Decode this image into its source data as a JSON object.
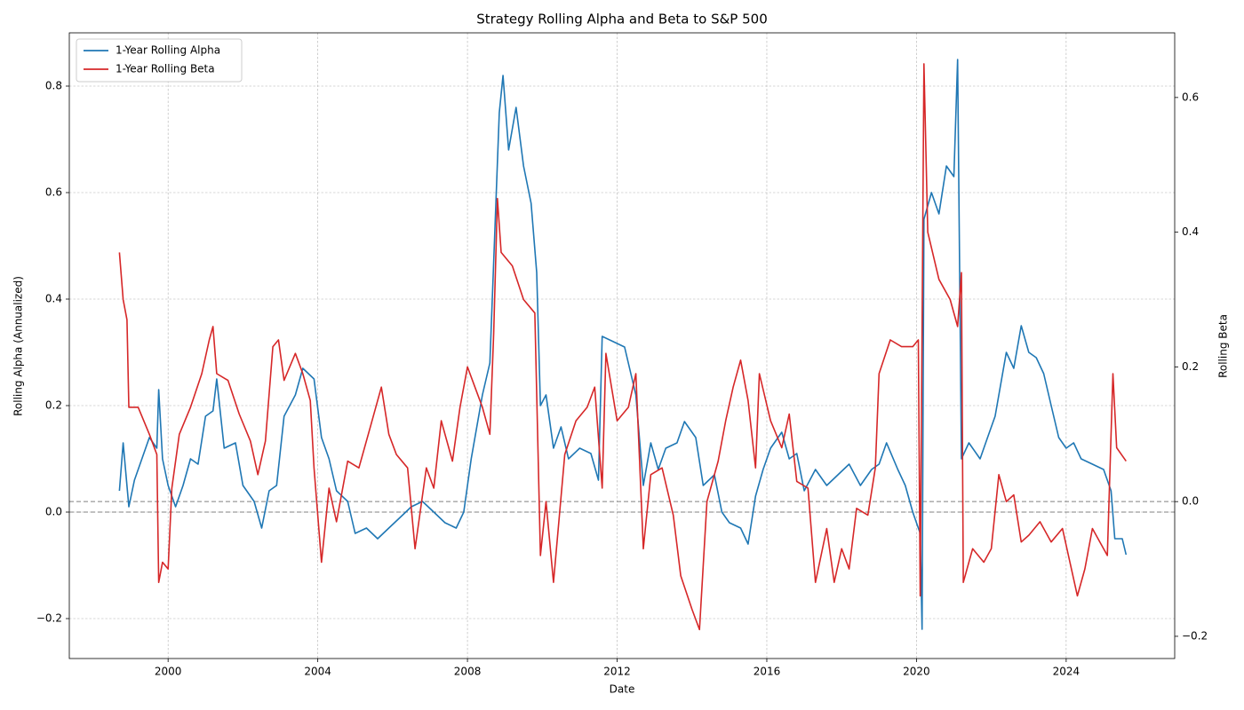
{
  "chart_data": {
    "type": "line",
    "title": "Strategy Rolling Alpha and Beta to S&P 500",
    "x_label": "Date",
    "y_label": "Rolling Alpha (Annualized)",
    "y2_label": "Rolling Beta",
    "xlim": [
      1997.36,
      2026.9
    ],
    "xticks": [
      2000,
      2004,
      2008,
      2012,
      2016,
      2020,
      2024
    ],
    "ylim": [
      -0.275,
      0.9
    ],
    "yticks": [
      {
        "value": -0.2,
        "label": "−0.2"
      },
      {
        "value": 0,
        "label": "0.0"
      },
      0.2,
      0.4,
      0.6,
      0.8
    ],
    "y2lim": [
      -0.233,
      0.696
    ],
    "y2ticks": [
      {
        "value": -0.2,
        "label": "−0.2"
      },
      {
        "value": 0,
        "label": "0.0"
      },
      0.2,
      0.4,
      0.6
    ],
    "grid": true,
    "legend": "upper-left",
    "reference_lines": [
      {
        "axis": "y",
        "value": 0,
        "color": "#808080"
      },
      {
        "axis": "y2",
        "value": 0,
        "color": "#808080"
      }
    ],
    "series": [
      {
        "name": "1-Year Rolling Alpha",
        "color": "#1f77b4",
        "axis": "y",
        "x": [
          1998.7,
          1998.8,
          1998.95,
          1999.1,
          1999.3,
          1999.5,
          1999.7,
          1999.75,
          1999.85,
          2000.0,
          2000.2,
          2000.4,
          2000.6,
          2000.8,
          2001.0,
          2001.2,
          2001.3,
          2001.5,
          2001.8,
          2002.0,
          2002.3,
          2002.5,
          2002.7,
          2002.9,
          2003.1,
          2003.4,
          2003.6,
          2003.9,
          2004.1,
          2004.3,
          2004.5,
          2004.8,
          2005.0,
          2005.3,
          2005.6,
          2005.9,
          2006.2,
          2006.5,
          2006.8,
          2007.1,
          2007.4,
          2007.7,
          2007.9,
          2008.1,
          2008.4,
          2008.6,
          2008.7,
          2008.85,
          2008.95,
          2009.1,
          2009.3,
          2009.5,
          2009.7,
          2009.85,
          2009.95,
          2010.1,
          2010.3,
          2010.5,
          2010.7,
          2011.0,
          2011.3,
          2011.5,
          2011.6,
          2011.9,
          2012.2,
          2012.5,
          2012.7,
          2012.9,
          2013.1,
          2013.3,
          2013.6,
          2013.8,
          2014.1,
          2014.3,
          2014.6,
          2014.8,
          2015.0,
          2015.3,
          2015.5,
          2015.7,
          2015.9,
          2016.1,
          2016.4,
          2016.6,
          2016.8,
          2017.0,
          2017.3,
          2017.6,
          2017.9,
          2018.2,
          2018.5,
          2018.8,
          2019.0,
          2019.2,
          2019.5,
          2019.7,
          2019.9,
          2020.1,
          2020.15,
          2020.2,
          2020.4,
          2020.6,
          2020.8,
          2021.0,
          2021.1,
          2021.2,
          2021.4,
          2021.7,
          2021.9,
          2022.1,
          2022.4,
          2022.6,
          2022.8,
          2023.0,
          2023.2,
          2023.4,
          2023.6,
          2023.8,
          2024.0,
          2024.2,
          2024.4,
          2024.7,
          2025.0,
          2025.2,
          2025.3,
          2025.5,
          2025.6
        ],
        "values": [
          0.04,
          0.13,
          0.01,
          0.06,
          0.1,
          0.14,
          0.12,
          0.23,
          0.1,
          0.05,
          0.01,
          0.05,
          0.1,
          0.09,
          0.18,
          0.19,
          0.25,
          0.12,
          0.13,
          0.05,
          0.02,
          -0.03,
          0.04,
          0.05,
          0.18,
          0.22,
          0.27,
          0.25,
          0.14,
          0.1,
          0.04,
          0.02,
          -0.04,
          -0.03,
          -0.05,
          -0.03,
          -0.01,
          0.01,
          0.02,
          0,
          -0.02,
          -0.03,
          0,
          0.1,
          0.22,
          0.28,
          0.47,
          0.75,
          0.82,
          0.68,
          0.76,
          0.65,
          0.58,
          0.45,
          0.2,
          0.22,
          0.12,
          0.16,
          0.1,
          0.12,
          0.11,
          0.06,
          0.33,
          0.32,
          0.31,
          0.22,
          0.05,
          0.13,
          0.08,
          0.12,
          0.13,
          0.17,
          0.14,
          0.05,
          0.07,
          0,
          -0.02,
          -0.03,
          -0.06,
          0.03,
          0.08,
          0.12,
          0.15,
          0.1,
          0.11,
          0.04,
          0.08,
          0.05,
          0.07,
          0.09,
          0.05,
          0.08,
          0.09,
          0.13,
          0.08,
          0.05,
          0,
          -0.04,
          -0.22,
          0.55,
          0.6,
          0.56,
          0.65,
          0.63,
          0.85,
          0.1,
          0.13,
          0.1,
          0.14,
          0.18,
          0.3,
          0.27,
          0.35,
          0.3,
          0.29,
          0.26,
          0.2,
          0.14,
          0.12,
          0.13,
          0.1,
          0.09,
          0.08,
          0.04,
          -0.05,
          -0.05,
          -0.08
        ]
      },
      {
        "name": "1-Year Rolling Beta",
        "color": "#d62728",
        "axis": "y2",
        "x": [
          1998.7,
          1998.8,
          1998.9,
          1998.95,
          1999.2,
          1999.5,
          1999.7,
          1999.75,
          1999.85,
          2000.0,
          2000.1,
          2000.3,
          2000.6,
          2000.9,
          2001.1,
          2001.2,
          2001.3,
          2001.6,
          2001.9,
          2002.2,
          2002.4,
          2002.6,
          2002.8,
          2002.95,
          2003.1,
          2003.4,
          2003.6,
          2003.8,
          2003.9,
          2004.1,
          2004.3,
          2004.5,
          2004.8,
          2005.1,
          2005.4,
          2005.7,
          2005.9,
          2006.1,
          2006.4,
          2006.6,
          2006.9,
          2007.1,
          2007.3,
          2007.6,
          2007.8,
          2008.0,
          2008.2,
          2008.4,
          2008.6,
          2008.7,
          2008.8,
          2008.9,
          2009.2,
          2009.5,
          2009.8,
          2009.95,
          2010.1,
          2010.3,
          2010.6,
          2010.9,
          2011.2,
          2011.4,
          2011.6,
          2011.7,
          2012.0,
          2012.3,
          2012.5,
          2012.7,
          2012.9,
          2013.2,
          2013.5,
          2013.7,
          2014.0,
          2014.2,
          2014.4,
          2014.7,
          2014.9,
          2015.1,
          2015.3,
          2015.5,
          2015.7,
          2015.8,
          2016.1,
          2016.4,
          2016.6,
          2016.8,
          2017.1,
          2017.3,
          2017.6,
          2017.8,
          2018.0,
          2018.2,
          2018.4,
          2018.7,
          2018.9,
          2019.0,
          2019.3,
          2019.6,
          2019.9,
          2020.05,
          2020.1,
          2020.2,
          2020.3,
          2020.6,
          2020.9,
          2021.1,
          2021.2,
          2021.25,
          2021.5,
          2021.8,
          2022.0,
          2022.2,
          2022.4,
          2022.6,
          2022.8,
          2023.0,
          2023.3,
          2023.6,
          2023.9,
          2024.1,
          2024.3,
          2024.5,
          2024.7,
          2024.9,
          2025.1,
          2025.25,
          2025.35,
          2025.6
        ],
        "values": [
          0.37,
          0.3,
          0.27,
          0.14,
          0.14,
          0.1,
          0.07,
          -0.12,
          -0.09,
          -0.1,
          0.02,
          0.1,
          0.14,
          0.19,
          0.24,
          0.26,
          0.19,
          0.18,
          0.13,
          0.09,
          0.04,
          0.09,
          0.23,
          0.24,
          0.18,
          0.22,
          0.19,
          0.15,
          0.05,
          -0.09,
          0.02,
          -0.03,
          0.06,
          0.05,
          0.11,
          0.17,
          0.1,
          0.07,
          0.05,
          -0.07,
          0.05,
          0.02,
          0.12,
          0.06,
          0.14,
          0.2,
          0.17,
          0.14,
          0.1,
          0.25,
          0.45,
          0.37,
          0.35,
          0.3,
          0.28,
          -0.08,
          0,
          -0.12,
          0.07,
          0.12,
          0.14,
          0.17,
          0.02,
          0.22,
          0.12,
          0.14,
          0.19,
          -0.07,
          0.04,
          0.05,
          -0.02,
          -0.11,
          -0.16,
          -0.19,
          0,
          0.06,
          0.12,
          0.17,
          0.21,
          0.15,
          0.05,
          0.19,
          0.12,
          0.08,
          0.13,
          0.03,
          0.02,
          -0.12,
          -0.04,
          -0.12,
          -0.07,
          -0.1,
          -0.01,
          -0.02,
          0.05,
          0.19,
          0.24,
          0.23,
          0.23,
          0.24,
          -0.14,
          0.65,
          0.4,
          0.33,
          0.3,
          0.26,
          0.34,
          -0.12,
          -0.07,
          -0.09,
          -0.07,
          0.04,
          0,
          0.01,
          -0.06,
          -0.05,
          -0.03,
          -0.06,
          -0.04,
          -0.09,
          -0.14,
          -0.1,
          -0.04,
          -0.06,
          -0.08,
          0.19,
          0.08,
          0.06
        ]
      }
    ]
  }
}
